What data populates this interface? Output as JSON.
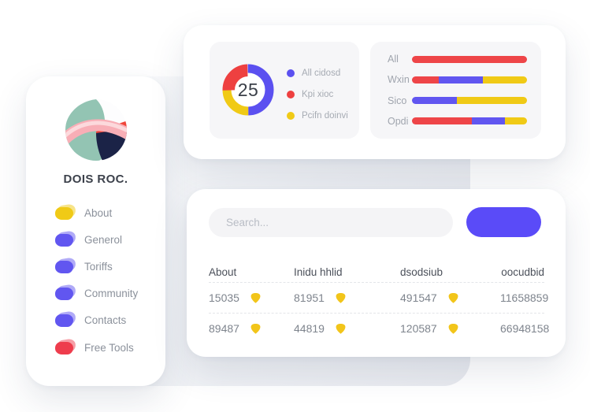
{
  "colors": {
    "red": "#ee4548",
    "purple": "#6156f0",
    "yellow": "#f0ca16",
    "button": "#5a4bf8",
    "shield": "#f2c51a"
  },
  "sidebar": {
    "brand": "DOIS ROC.",
    "items": [
      {
        "label": "About",
        "color": "#f0ca16"
      },
      {
        "label": "Generol",
        "color": "#6156f0"
      },
      {
        "label": "Toriffs",
        "color": "#6156f0"
      },
      {
        "label": "Community",
        "color": "#6156f0"
      },
      {
        "label": "Contacts",
        "color": "#6156f0"
      },
      {
        "label": "Free Tools",
        "color": "#ee3d4d"
      }
    ]
  },
  "top_card": {
    "donut": {
      "type": "donut",
      "center_label": "25",
      "segments": [
        {
          "name": "All cidosd",
          "value": 50,
          "color": "#5b50f0",
          "emphasis": false
        },
        {
          "name": "Pcifn doinvi",
          "value": 25,
          "color": "#f0ca16",
          "emphasis": false
        },
        {
          "name": "Kpi xioc",
          "value": 25,
          "color": "#ee4040",
          "emphasis": true
        }
      ],
      "legend": [
        {
          "label": "All cidosd",
          "color": "#5b50f0"
        },
        {
          "label": "Kpi xioc",
          "color": "#ee4040"
        },
        {
          "label": "Pcifn doinvi",
          "color": "#f0ca16"
        }
      ]
    },
    "bars": {
      "type": "stacked-bar",
      "categories": [
        {
          "label": "All",
          "segments": [
            {
              "color": "#ee4548",
              "value": 100
            }
          ]
        },
        {
          "label": "Wxin",
          "segments": [
            {
              "color": "#ee4548",
              "value": 23.5
            },
            {
              "color": "#6156f0",
              "value": 38
            },
            {
              "color": "#f0ca16",
              "value": 38.5
            }
          ]
        },
        {
          "label": "Sico",
          "segments": [
            {
              "color": "#6156f0",
              "value": 39
            },
            {
              "color": "#f0ca16",
              "value": 61
            }
          ]
        },
        {
          "label": "Opdi",
          "segments": [
            {
              "color": "#ee4548",
              "value": 52
            },
            {
              "color": "#6156f0",
              "value": 29
            },
            {
              "color": "#f0ca16",
              "value": 19
            }
          ]
        }
      ]
    }
  },
  "bottom_card": {
    "search_placeholder": "Search...",
    "table": {
      "headers": [
        "About",
        "Inidu hhlid",
        "dsodsiub",
        "oocudbid"
      ],
      "rows": [
        [
          "15035",
          "81951",
          "491547",
          "11658859"
        ],
        [
          "89487",
          "44819",
          "120587",
          "66948158"
        ]
      ]
    }
  }
}
